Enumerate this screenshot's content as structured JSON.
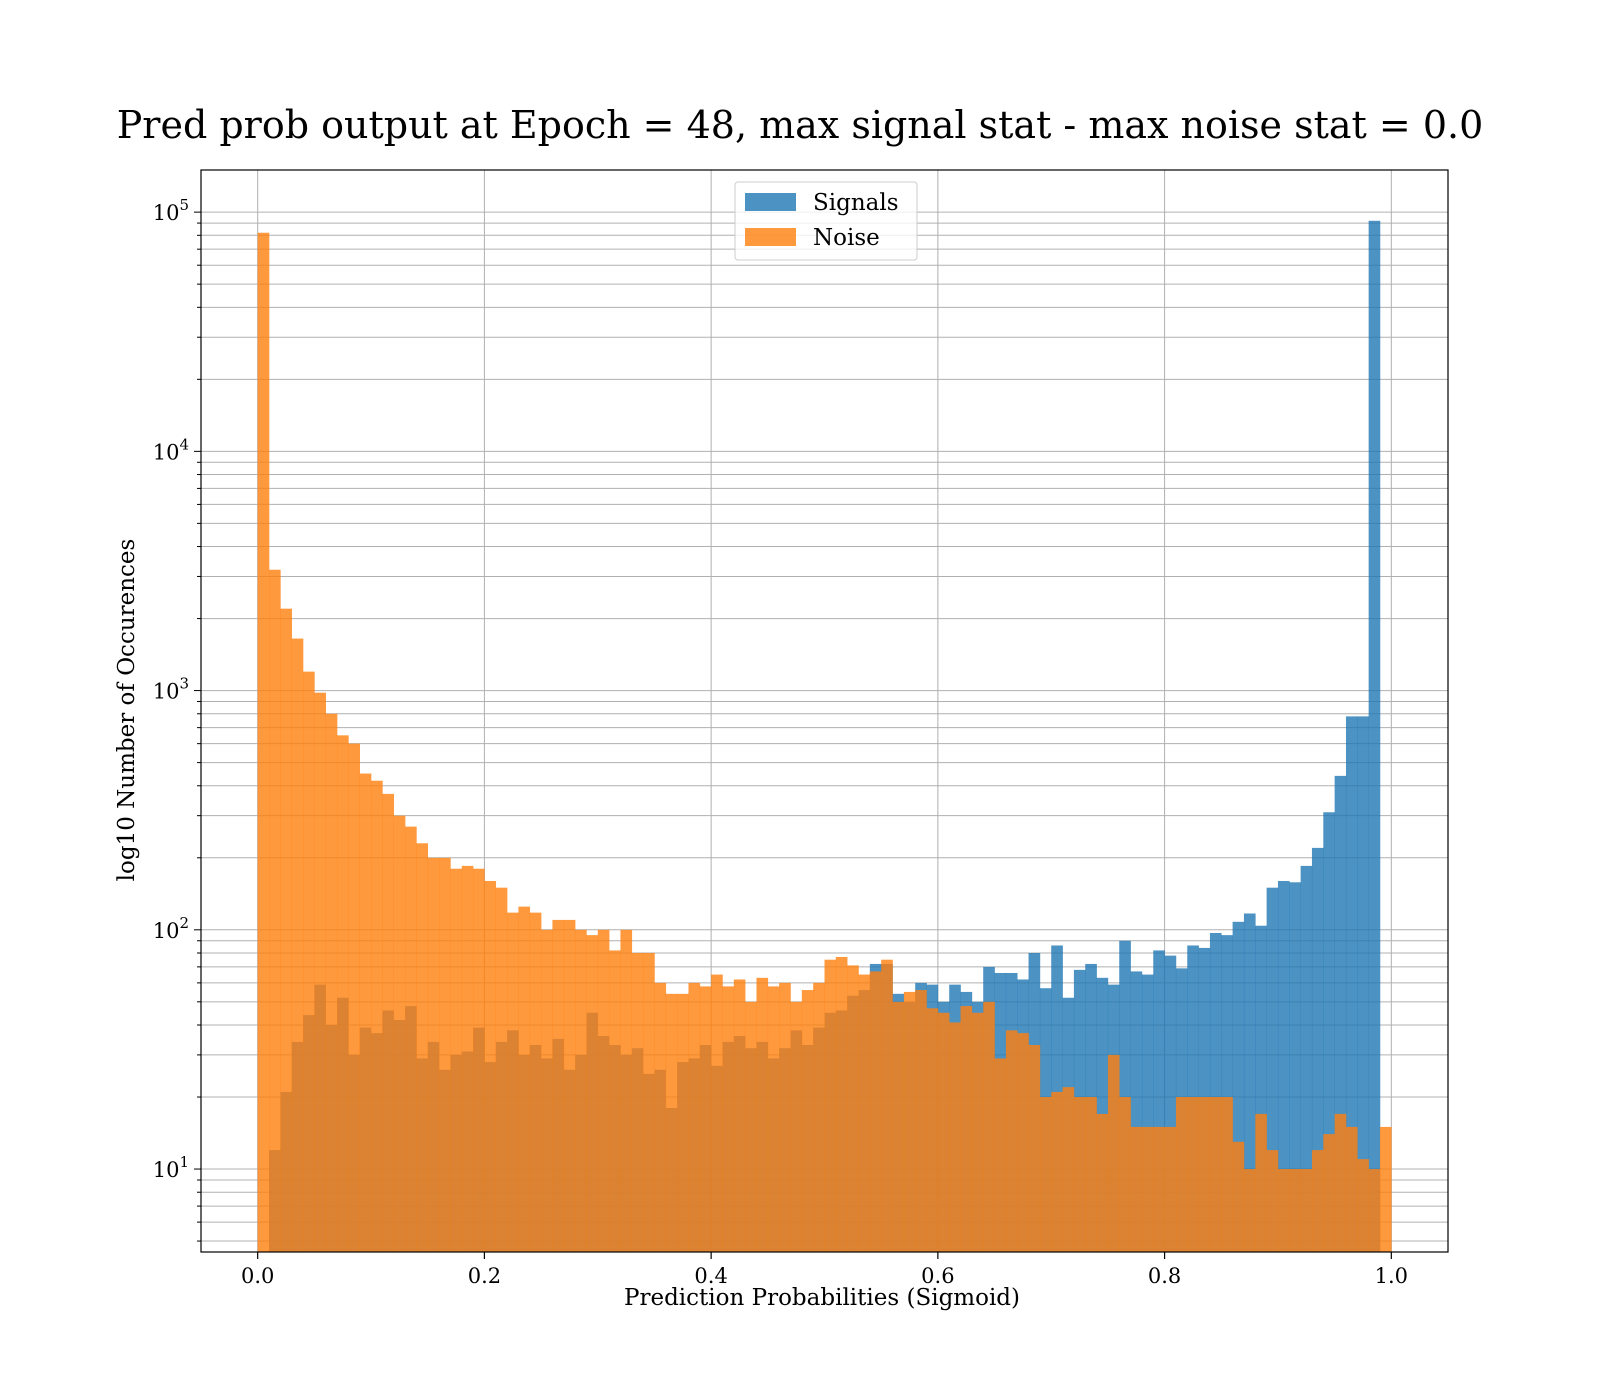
{
  "chart_data": {
    "type": "histogram",
    "title": "Pred prob output at Epoch = 48, max signal stat - max noise stat = 0.0",
    "xlabel": "Prediction Probabilities (Sigmoid)",
    "ylabel": "log10 Number of Occurences",
    "xlim": [
      -0.05,
      1.05
    ],
    "ylim": [
      4.5,
      150000
    ],
    "yscale": "log",
    "xticks": [
      "0.0",
      "0.2",
      "0.4",
      "0.6",
      "0.8",
      "1.0"
    ],
    "xtick_values": [
      0.0,
      0.2,
      0.4,
      0.6,
      0.8,
      1.0
    ],
    "yticks": [
      {
        "base": "10",
        "exp": "1",
        "value": 10
      },
      {
        "base": "10",
        "exp": "2",
        "value": 100
      },
      {
        "base": "10",
        "exp": "3",
        "value": 1000
      },
      {
        "base": "10",
        "exp": "4",
        "value": 10000
      },
      {
        "base": "10",
        "exp": "5",
        "value": 100000
      }
    ],
    "grid": true,
    "legend_position": "top-center",
    "bin_edges_range": [
      0.0,
      1.0
    ],
    "bin_count": 100,
    "series": [
      {
        "name": "Signals",
        "color": "#1f77b4",
        "alpha": 0.8,
        "values": [
          0,
          12,
          21,
          34,
          44,
          59,
          40,
          52,
          30,
          39,
          37,
          46,
          42,
          48,
          29,
          34,
          26,
          30,
          31,
          39,
          28,
          34,
          38,
          30,
          33,
          29,
          35,
          26,
          30,
          45,
          36,
          33,
          30,
          32,
          25,
          26,
          18,
          28,
          29,
          33,
          27,
          34,
          36,
          32,
          34,
          29,
          32,
          38,
          33,
          39,
          45,
          46,
          53,
          56,
          72,
          72,
          54,
          50,
          60,
          59,
          50,
          59,
          55,
          50,
          70,
          66,
          66,
          62,
          80,
          57,
          86,
          52,
          68,
          72,
          63,
          59,
          90,
          67,
          65,
          82,
          78,
          69,
          86,
          84,
          97,
          95,
          108,
          117,
          104,
          150,
          160,
          158,
          185,
          220,
          310,
          440,
          780,
          780,
          92000,
          0
        ]
      },
      {
        "name": "Noise",
        "color": "#ff7f0e",
        "alpha": 0.8,
        "values": [
          82000,
          3200,
          2200,
          1650,
          1200,
          980,
          800,
          650,
          600,
          450,
          420,
          370,
          300,
          270,
          230,
          200,
          200,
          180,
          185,
          180,
          160,
          150,
          118,
          125,
          118,
          100,
          110,
          110,
          100,
          95,
          100,
          82,
          100,
          80,
          80,
          60,
          54,
          54,
          60,
          58,
          65,
          58,
          62,
          50,
          63,
          58,
          60,
          50,
          56,
          60,
          75,
          77,
          71,
          65,
          67,
          75,
          50,
          55,
          56,
          47,
          45,
          41,
          48,
          45,
          50,
          29,
          38,
          37,
          33,
          20,
          21,
          22,
          20,
          20,
          17,
          30,
          20,
          15,
          15,
          15,
          15,
          20,
          20,
          20,
          20,
          20,
          13,
          10,
          17,
          12,
          10,
          10,
          10,
          12,
          14,
          17,
          15,
          11,
          10,
          15
        ]
      }
    ]
  }
}
